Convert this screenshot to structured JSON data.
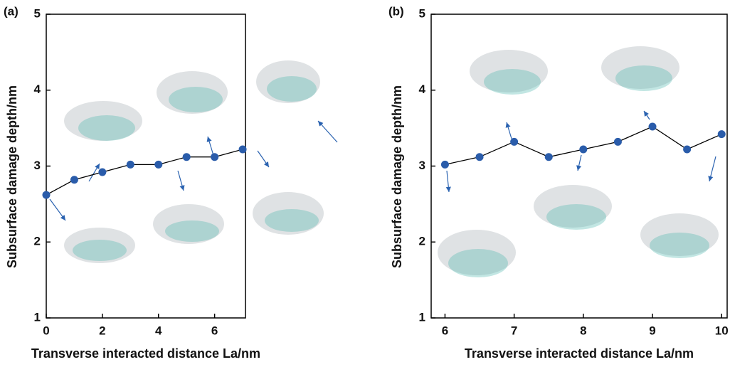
{
  "chart_data": [
    {
      "type": "line",
      "panel_label": "(a)",
      "x_label": "Transverse interacted distance La/nm",
      "y_label": "Subsurface damage depth/nm",
      "x": [
        0,
        1,
        2,
        3,
        4,
        5,
        6,
        7
      ],
      "values": [
        2.62,
        2.82,
        2.92,
        3.02,
        3.02,
        3.12,
        3.12,
        3.22
      ],
      "color": "#2a5caa",
      "xlim": [
        0,
        7.1
      ],
      "xticks": [
        0,
        2,
        4,
        6
      ],
      "ylim": [
        1,
        5
      ],
      "yticks": [
        1,
        2,
        3,
        4,
        5
      ]
    },
    {
      "type": "line",
      "panel_label": "(b)",
      "x_label": "Transverse interacted distance La/nm",
      "y_label": "Subsurface damage depth/nm",
      "x": [
        6,
        6.5,
        7,
        7.5,
        8,
        8.5,
        9,
        9.5,
        10
      ],
      "values": [
        3.02,
        3.12,
        3.32,
        3.12,
        3.22,
        3.32,
        3.52,
        3.22,
        3.42
      ],
      "color": "#2a5caa",
      "xlim": [
        5.8,
        10.08
      ],
      "xticks": [
        6,
        7,
        8,
        9,
        10
      ],
      "ylim": [
        1,
        5
      ],
      "yticks": [
        1,
        2,
        3,
        4,
        5
      ]
    }
  ]
}
